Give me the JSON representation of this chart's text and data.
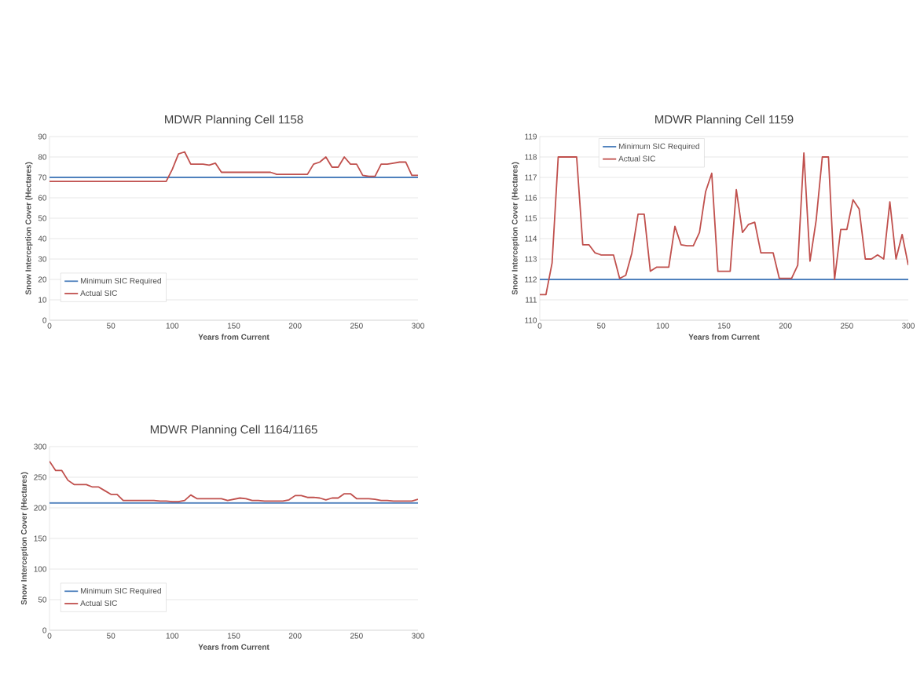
{
  "chart_data": [
    {
      "type": "line",
      "title": "MDWR Planning Cell 1158",
      "xlabel": "Years from Current",
      "ylabel": "Snow Interception Cover (Hectares)",
      "xlim": [
        0,
        300
      ],
      "ylim": [
        0,
        90
      ],
      "xticks": [
        0,
        50,
        100,
        150,
        200,
        250,
        300
      ],
      "yticks": [
        0,
        10,
        20,
        30,
        40,
        50,
        60,
        70,
        80,
        90
      ],
      "grid": "y",
      "legend": "bottom left",
      "x": [
        0,
        5,
        10,
        15,
        20,
        25,
        30,
        35,
        40,
        45,
        50,
        55,
        60,
        65,
        70,
        75,
        80,
        85,
        90,
        95,
        100,
        105,
        110,
        115,
        120,
        125,
        130,
        135,
        140,
        145,
        150,
        155,
        160,
        165,
        170,
        175,
        180,
        185,
        190,
        195,
        200,
        205,
        210,
        215,
        220,
        225,
        230,
        235,
        240,
        245,
        250,
        255,
        260,
        265,
        270,
        275,
        280,
        285,
        290,
        295,
        300
      ],
      "series": [
        {
          "name": "Minimum SIC Required",
          "color": "#4f81bd",
          "values": [
            70,
            70,
            70,
            70,
            70,
            70,
            70,
            70,
            70,
            70,
            70,
            70,
            70,
            70,
            70,
            70,
            70,
            70,
            70,
            70,
            70,
            70,
            70,
            70,
            70,
            70,
            70,
            70,
            70,
            70,
            70,
            70,
            70,
            70,
            70,
            70,
            70,
            70,
            70,
            70,
            70,
            70,
            70,
            70,
            70,
            70,
            70,
            70,
            70,
            70,
            70,
            70,
            70,
            70,
            70,
            70,
            70,
            70,
            70,
            70,
            70
          ]
        },
        {
          "name": "Actual SIC",
          "color": "#c0504d",
          "values": [
            68,
            68,
            68,
            68,
            68,
            68,
            68,
            68,
            68,
            68,
            68,
            68,
            68,
            68,
            68,
            68,
            68,
            68,
            68,
            68,
            74,
            81.5,
            82.5,
            76.5,
            76.5,
            76.5,
            76,
            77,
            72.5,
            72.5,
            72.5,
            72.5,
            72.5,
            72.5,
            72.5,
            72.5,
            72.5,
            71.5,
            71.5,
            71.5,
            71.5,
            71.5,
            71.5,
            76.5,
            77.5,
            80,
            75,
            75,
            80,
            76.5,
            76.5,
            71,
            70.5,
            70.5,
            76.5,
            76.5,
            77,
            77.5,
            77.5,
            71,
            71
          ]
        }
      ]
    },
    {
      "type": "line",
      "title": "MDWR Planning Cell 1159",
      "xlabel": "Years from Current",
      "ylabel": "Snow Interception Cover (Hectares)",
      "xlim": [
        0,
        300
      ],
      "ylim": [
        110,
        119
      ],
      "xticks": [
        0,
        50,
        100,
        150,
        200,
        250,
        300
      ],
      "yticks": [
        110,
        111,
        112,
        113,
        114,
        115,
        116,
        117,
        118,
        119
      ],
      "grid": "y",
      "legend": "top left",
      "x": [
        0,
        5,
        10,
        15,
        20,
        25,
        30,
        35,
        40,
        45,
        50,
        55,
        60,
        65,
        70,
        75,
        80,
        85,
        90,
        95,
        100,
        105,
        110,
        115,
        120,
        125,
        130,
        135,
        140,
        145,
        150,
        155,
        160,
        165,
        170,
        175,
        180,
        185,
        190,
        195,
        200,
        205,
        210,
        215,
        220,
        225,
        230,
        235,
        240,
        245,
        250,
        255,
        260,
        265,
        270,
        275,
        280,
        285,
        290,
        295,
        300
      ],
      "series": [
        {
          "name": "Minimum SIC Required",
          "color": "#4f81bd",
          "values": [
            112,
            112,
            112,
            112,
            112,
            112,
            112,
            112,
            112,
            112,
            112,
            112,
            112,
            112,
            112,
            112,
            112,
            112,
            112,
            112,
            112,
            112,
            112,
            112,
            112,
            112,
            112,
            112,
            112,
            112,
            112,
            112,
            112,
            112,
            112,
            112,
            112,
            112,
            112,
            112,
            112,
            112,
            112,
            112,
            112,
            112,
            112,
            112,
            112,
            112,
            112,
            112,
            112,
            112,
            112,
            112,
            112,
            112,
            112,
            112,
            112
          ]
        },
        {
          "name": "Actual SIC",
          "color": "#c0504d",
          "values": [
            111.25,
            111.25,
            112.8,
            118,
            118,
            118,
            118,
            113.7,
            113.7,
            113.3,
            113.2,
            113.2,
            113.2,
            112.05,
            112.2,
            113.3,
            115.2,
            115.2,
            112.4,
            112.6,
            112.6,
            112.6,
            114.6,
            113.7,
            113.65,
            113.65,
            114.3,
            116.3,
            117.2,
            112.4,
            112.4,
            112.4,
            116.4,
            114.3,
            114.7,
            114.8,
            113.3,
            113.3,
            113.3,
            112.05,
            112.05,
            112.05,
            112.7,
            118.2,
            112.9,
            114.9,
            118,
            118,
            112,
            114.45,
            114.45,
            115.9,
            115.45,
            113,
            113,
            113.2,
            113,
            115.8,
            113,
            114.2,
            112.7
          ]
        }
      ]
    },
    {
      "type": "line",
      "title": "MDWR Planning Cell 1164/1165",
      "xlabel": "Years from Current",
      "ylabel": "Snow Interception Cover (Hectares)",
      "xlim": [
        0,
        300
      ],
      "ylim": [
        0,
        300
      ],
      "xticks": [
        0,
        50,
        100,
        150,
        200,
        250,
        300
      ],
      "yticks": [
        0,
        50,
        100,
        150,
        200,
        250,
        300
      ],
      "grid": "y",
      "legend": "bottom left",
      "x": [
        0,
        5,
        10,
        15,
        20,
        25,
        30,
        35,
        40,
        45,
        50,
        55,
        60,
        65,
        70,
        75,
        80,
        85,
        90,
        95,
        100,
        105,
        110,
        115,
        120,
        125,
        130,
        135,
        140,
        145,
        150,
        155,
        160,
        165,
        170,
        175,
        180,
        185,
        190,
        195,
        200,
        205,
        210,
        215,
        220,
        225,
        230,
        235,
        240,
        245,
        250,
        255,
        260,
        265,
        270,
        275,
        280,
        285,
        290,
        295,
        300
      ],
      "series": [
        {
          "name": "Minimum SIC Required",
          "color": "#4f81bd",
          "values": [
            208,
            208,
            208,
            208,
            208,
            208,
            208,
            208,
            208,
            208,
            208,
            208,
            208,
            208,
            208,
            208,
            208,
            208,
            208,
            208,
            208,
            208,
            208,
            208,
            208,
            208,
            208,
            208,
            208,
            208,
            208,
            208,
            208,
            208,
            208,
            208,
            208,
            208,
            208,
            208,
            208,
            208,
            208,
            208,
            208,
            208,
            208,
            208,
            208,
            208,
            208,
            208,
            208,
            208,
            208,
            208,
            208,
            208,
            208,
            208,
            208
          ]
        },
        {
          "name": "Actual SIC",
          "color": "#c0504d",
          "values": [
            276,
            261,
            261,
            245,
            238,
            238,
            238,
            234,
            234,
            228,
            222,
            222,
            212,
            212,
            212,
            212,
            212,
            212,
            211,
            211,
            210,
            210,
            212,
            221,
            215,
            215,
            215,
            215,
            215,
            212,
            214,
            216,
            215,
            212,
            212,
            211,
            211,
            211,
            211,
            213,
            220,
            220,
            217,
            217,
            216,
            213,
            216,
            216,
            223,
            223,
            215,
            215,
            215,
            214,
            212,
            212,
            211,
            211,
            211,
            211,
            214
          ]
        }
      ]
    }
  ]
}
